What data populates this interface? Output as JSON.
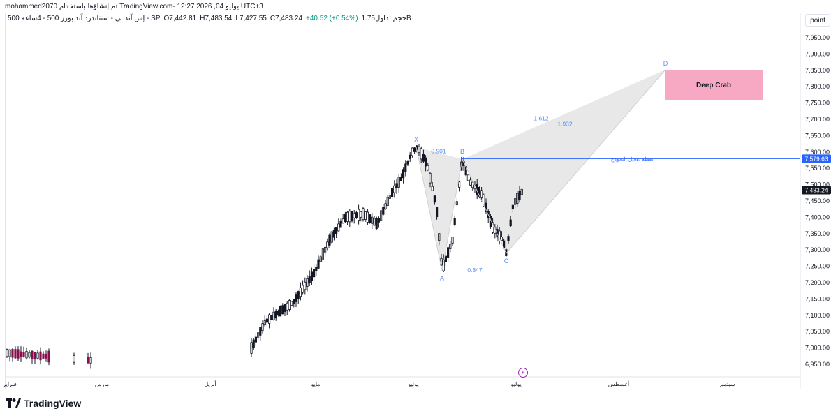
{
  "header": {
    "credit": "mohammed2070 تم إنشاؤها باستخدام TradingView.com- 12:27 2026 ,04 يوليو UTC+3",
    "symbol": "500 إس آند بي - سنتاندرد آند بورز 500 - 4ساعة - SP",
    "open": "O7,442.81",
    "high": "H7,483.54",
    "low": "L7,427.55",
    "close": "C7,483.24",
    "change": "+40.52 (+0.54%)",
    "volume": "حجم تداول1.75B"
  },
  "scale_button": "point",
  "price_axis": {
    "ticks": [
      "7,950.00",
      "7,900.00",
      "7,850.00",
      "7,800.00",
      "7,750.00",
      "7,700.00",
      "7,650.00",
      "7,600.00",
      "7,550.00",
      "7,500.00",
      "7,450.00",
      "7,400.00",
      "7,350.00",
      "7,300.00",
      "7,250.00",
      "7,200.00",
      "7,150.00",
      "7,100.00",
      "7,050.00",
      "7,000.00",
      "6,950.00"
    ],
    "last_price_label": "7,483.24",
    "line_price_label": "7,579.63"
  },
  "time_axis": {
    "labels": [
      "فبراير",
      "مارس",
      "أبريل",
      "مايو",
      "يونيو",
      "يوليو",
      "أغسطس",
      "سبتمبر"
    ]
  },
  "pattern": {
    "name": "Deep Crab",
    "points": [
      "X",
      "A",
      "B",
      "C",
      "D"
    ],
    "ratios": [
      "0.901",
      "0.847",
      "1.612",
      "1.932"
    ],
    "line_label": "نقطة تفعيل النموذج"
  },
  "footer": {
    "brand": "TradingView"
  },
  "colors": {
    "up": "#089981",
    "down": "#f23645",
    "candle_body": "#131722",
    "blue": "#2962ff",
    "pattern_fill": "#e6e6e6",
    "label_box": "#f7a9c4"
  },
  "chart_data": {
    "type": "candlestick",
    "title": "",
    "xlabel": "",
    "ylabel": "",
    "ylim": [
      6930,
      7980
    ],
    "x": [
      "فبراير",
      "مارس",
      "أبريل",
      "مايو",
      "يونيو",
      "يوليو",
      "أغسطس",
      "سبتمبر"
    ],
    "last_price": 7483.24,
    "trigger_line": 7579.63,
    "harmonic_points": [
      {
        "label": "X",
        "price": 7615
      },
      {
        "label": "A",
        "price": 7237
      },
      {
        "label": "B",
        "price": 7578
      },
      {
        "label": "C",
        "price": 7290
      },
      {
        "label": "D",
        "price": 7852
      }
    ],
    "series": [
      {
        "values": [
          [
            6990,
            7005,
            6950,
            6990
          ],
          [
            6985,
            6992,
            6945,
            6960
          ],
          [
            6955,
            6975,
            6940,
            6948
          ],
          [
            6950,
            6990,
            6945,
            6978
          ],
          [
            6978,
            7000,
            6962,
            6985
          ],
          [
            6982,
            6995,
            6955,
            6965
          ],
          [
            6962,
            6985,
            6950,
            6980
          ],
          [
            6975,
            6990,
            6958,
            6962
          ],
          [
            6960,
            6975,
            6940,
            6945
          ],
          [
            6945,
            6965,
            6938,
            6960
          ],
          [
            6958,
            6985,
            6950,
            6978
          ],
          [
            6976,
            6990,
            6955,
            6968
          ],
          [
            6965,
            6985,
            6958,
            6980
          ],
          [
            6978,
            6988,
            6955,
            6960
          ],
          [
            6958,
            6972,
            6935,
            6940
          ],
          [
            6940,
            6958,
            6935,
            6955
          ],
          [
            6950,
            6975,
            6945,
            6968
          ],
          [
            6966,
            6980,
            6950,
            6955
          ],
          [
            6952,
            6968,
            6940,
            6962
          ],
          [
            6960,
            6972,
            6945,
            6950
          ]
        ]
      }
    ]
  }
}
